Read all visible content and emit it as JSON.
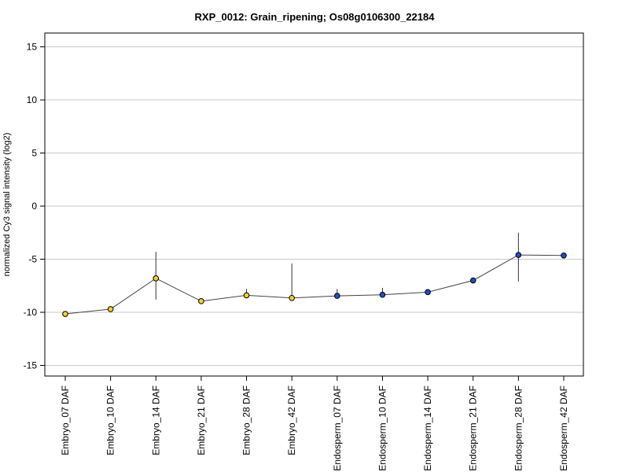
{
  "chart_data": {
    "type": "line",
    "title": "RXP_0012: Grain_ripening; Os08g0106300_22184",
    "xlabel": "",
    "ylabel": "normalized Cy3 signal intensity (log2)",
    "ylim": [
      -16,
      16.3
    ],
    "yticks": [
      15,
      10,
      5,
      0,
      -5,
      -10,
      -15
    ],
    "grid": true,
    "categories": [
      "Embryo_07 DAF",
      "Embryo_10 DAF",
      "Embryo_14 DAF",
      "Embryo_21 DAF",
      "Embryo_28 DAF",
      "Embryo_42 DAF",
      "Endosperm_07 DAF",
      "Endosperm_10 DAF",
      "Endosperm_14 DAF",
      "Endosperm_21 DAF",
      "Endosperm_28 DAF",
      "Endosperm_42 DAF"
    ],
    "series": [
      {
        "values": [
          -10.15,
          -9.7,
          -6.8,
          -8.95,
          -8.4,
          -8.65,
          -8.45,
          -8.35,
          -8.1,
          -7.0,
          -4.6,
          -4.65
        ],
        "error_low": [
          -10.15,
          -9.85,
          -8.8,
          -8.95,
          -8.5,
          -8.7,
          -8.5,
          -8.5,
          -8.2,
          -7.0,
          -7.1,
          -4.7
        ],
        "error_high": [
          -10.15,
          -9.55,
          -4.3,
          -8.95,
          -7.8,
          -5.4,
          -7.8,
          -7.7,
          -8.0,
          -7.0,
          -2.5,
          -4.6
        ],
        "point_colors": [
          "#f2d22a",
          "#f2d22a",
          "#f2d22a",
          "#f2d22a",
          "#f2d22a",
          "#f2d22a",
          "#1f4fbf",
          "#1f4fbf",
          "#1f4fbf",
          "#1f4fbf",
          "#1f4fbf",
          "#1f4fbf"
        ]
      }
    ],
    "colors": {
      "line": "#444444",
      "grid": "#c8c8c8",
      "axis": "#000000",
      "marker_edge": "#000000"
    }
  }
}
